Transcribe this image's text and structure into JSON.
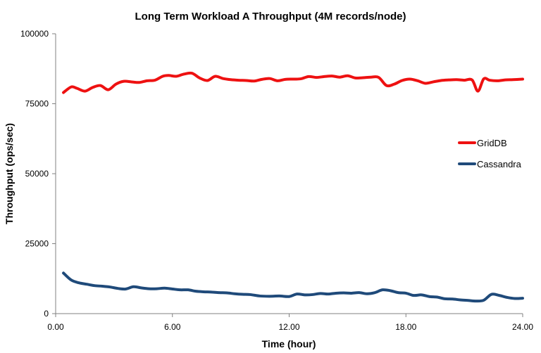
{
  "chart_data": {
    "type": "line",
    "title": "Long Term Workload A Throughput (4M records/node)",
    "xlabel": "Time (hour)",
    "ylabel": "Throughput (ops/sec)",
    "xlim": [
      0,
      24
    ],
    "ylim": [
      0,
      100000
    ],
    "x_ticks": [
      0,
      6,
      12,
      18,
      24
    ],
    "x_tick_labels": [
      "0.00",
      "6.00",
      "12.00",
      "18.00",
      "24.00"
    ],
    "y_ticks": [
      0,
      25000,
      50000,
      75000,
      100000
    ],
    "y_tick_labels": [
      "0",
      "25000",
      "50000",
      "75000",
      "100000"
    ],
    "grid": false,
    "legend_position": "right",
    "series": [
      {
        "name": "GridDB",
        "color": "#ee1111",
        "x": [
          0.4,
          0.8,
          1.1,
          1.5,
          1.9,
          2.3,
          2.7,
          3.1,
          3.5,
          3.9,
          4.3,
          4.7,
          5.1,
          5.5,
          5.8,
          6.2,
          6.6,
          7.0,
          7.4,
          7.8,
          8.2,
          8.6,
          9.0,
          9.4,
          9.8,
          10.2,
          10.6,
          11.0,
          11.4,
          11.8,
          12.2,
          12.6,
          13.0,
          13.4,
          13.8,
          14.2,
          14.6,
          15.0,
          15.4,
          15.8,
          16.2,
          16.6,
          17.0,
          17.4,
          17.8,
          18.2,
          18.6,
          19.0,
          19.4,
          19.8,
          20.2,
          20.6,
          21.0,
          21.4,
          21.7,
          22.0,
          22.3,
          22.7,
          23.1,
          23.5,
          24.0
        ],
        "values": [
          79000,
          81000,
          80500,
          79500,
          80800,
          81500,
          80000,
          82000,
          83000,
          82800,
          82600,
          83200,
          83400,
          84800,
          85100,
          84800,
          85600,
          85900,
          84200,
          83300,
          84800,
          84000,
          83600,
          83400,
          83300,
          83100,
          83700,
          84000,
          83200,
          83700,
          83800,
          83900,
          84700,
          84400,
          84700,
          84900,
          84500,
          85000,
          84200,
          84300,
          84500,
          84400,
          81500,
          82000,
          83300,
          83800,
          83200,
          82300,
          82800,
          83300,
          83500,
          83600,
          83400,
          83500,
          79500,
          83900,
          83400,
          83200,
          83500,
          83600,
          83800
        ]
      },
      {
        "name": "Cassandra",
        "color": "#1f4a7a",
        "x": [
          0.4,
          0.8,
          1.2,
          1.6,
          2.0,
          2.4,
          2.8,
          3.2,
          3.6,
          4.0,
          4.4,
          4.8,
          5.2,
          5.6,
          6.0,
          6.4,
          6.8,
          7.2,
          7.6,
          8.0,
          8.4,
          8.8,
          9.2,
          9.6,
          10.0,
          10.5,
          11.0,
          11.5,
          12.0,
          12.4,
          12.8,
          13.2,
          13.6,
          14.0,
          14.4,
          14.8,
          15.2,
          15.6,
          16.0,
          16.4,
          16.8,
          17.2,
          17.6,
          18.0,
          18.4,
          18.8,
          19.2,
          19.6,
          20.0,
          20.4,
          20.8,
          21.2,
          21.6,
          22.0,
          22.4,
          22.8,
          23.2,
          23.6,
          24.0
        ],
        "values": [
          14500,
          12000,
          11000,
          10500,
          10000,
          9800,
          9500,
          9000,
          8800,
          9600,
          9200,
          8900,
          8900,
          9100,
          8800,
          8500,
          8500,
          8000,
          7800,
          7700,
          7500,
          7400,
          7100,
          6900,
          6800,
          6300,
          6200,
          6300,
          6100,
          7000,
          6700,
          6800,
          7200,
          7000,
          7300,
          7400,
          7300,
          7500,
          7100,
          7500,
          8500,
          8200,
          7500,
          7300,
          6500,
          6700,
          6100,
          5900,
          5300,
          5200,
          4900,
          4700,
          4500,
          4800,
          6900,
          6500,
          5800,
          5400,
          5500
        ]
      }
    ]
  }
}
